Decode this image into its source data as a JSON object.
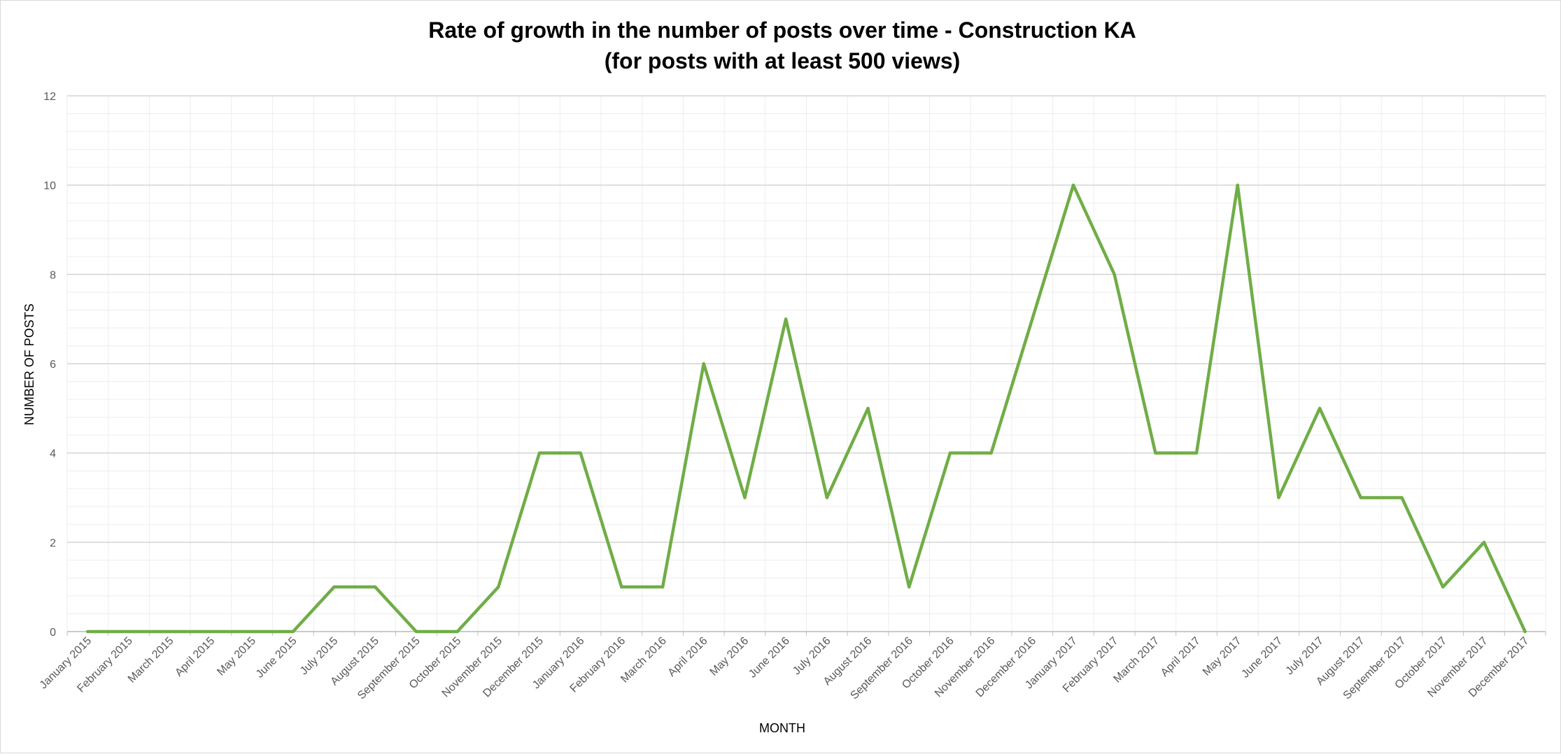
{
  "chart_data": {
    "type": "line",
    "title": "Rate of growth in the number of posts over time - Construction KA",
    "subtitle": "(for posts with at least 500 views)",
    "xlabel": "MONTH",
    "ylabel": "NUMBER OF POSTS",
    "ylim": [
      0,
      12
    ],
    "yticks": [
      "0",
      "2",
      "4",
      "6",
      "8",
      "10",
      "12"
    ],
    "grid": true,
    "legend": "none",
    "categories": [
      "January 2015",
      "February 2015",
      "March 2015",
      "April 2015",
      "May 2015",
      "June 2015",
      "July 2015",
      "August 2015",
      "September 2015",
      "October 2015",
      "November 2015",
      "December 2015",
      "January 2016",
      "February 2016",
      "March 2016",
      "April 2016",
      "May 2016",
      "June 2016",
      "July 2016",
      "August 2016",
      "September 2016",
      "October 2016",
      "November 2016",
      "December 2016",
      "January 2017",
      "February 2017",
      "March 2017",
      "April 2017",
      "May 2017",
      "June 2017",
      "July 2017",
      "August 2017",
      "September 2017",
      "October 2017",
      "November 2017",
      "December 2017"
    ],
    "series": [
      {
        "color": "#70ad47",
        "values": [
          0,
          0,
          0,
          0,
          0,
          0,
          1,
          1,
          0,
          0,
          1,
          4,
          4,
          1,
          1,
          6,
          3,
          7,
          3,
          5,
          1,
          4,
          4,
          7,
          10,
          8,
          4,
          4,
          10,
          3,
          5,
          3,
          3,
          1,
          2,
          0
        ]
      }
    ]
  }
}
